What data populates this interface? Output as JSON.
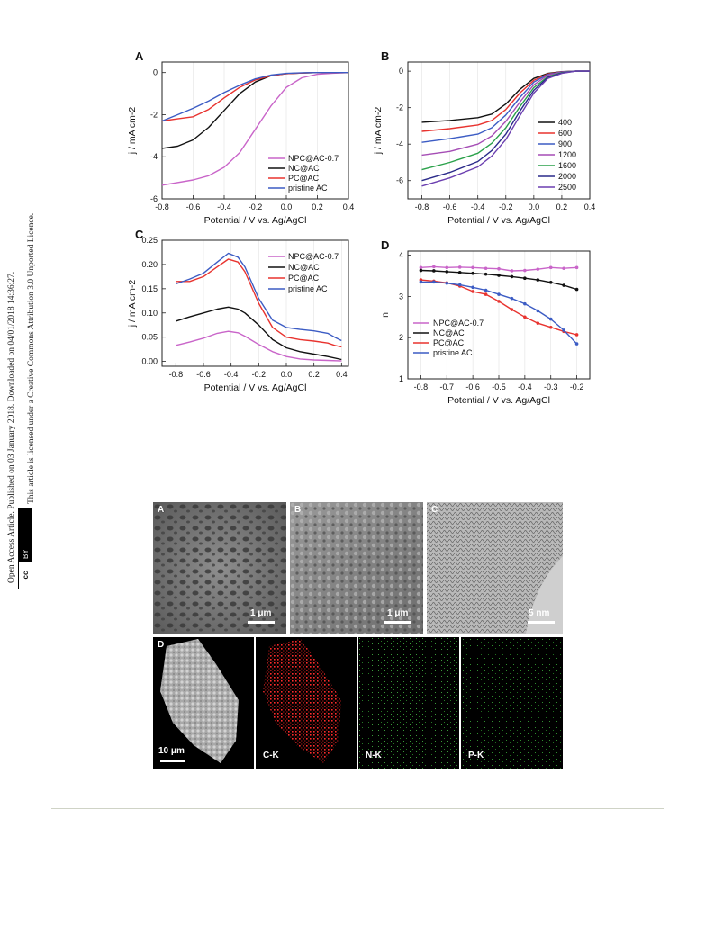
{
  "sidebar": {
    "line1": "Open Access Article. Published on 03 January 2018. Downloaded on 04/01/2018 14:36:27.",
    "line2": "This article is licensed under a Creative Commons Attribution 3.0 Unported Licence.",
    "cc_left": "cc",
    "cc_right": "BY"
  },
  "colors": {
    "purple_light": "#c965c9",
    "black": "#111111",
    "red": "#e8332f",
    "blue": "#3c5cc4",
    "green": "#2aa14a",
    "navy": "#2a2a8a",
    "violet": "#6b3fb0",
    "purple_mid": "#a54db5"
  },
  "chart_data": [
    {
      "panel": "A",
      "type": "line",
      "xlabel": "Potential / V vs. Ag/AgCl",
      "ylabel": "j / mA cm-2",
      "xlim": [
        -0.8,
        0.4
      ],
      "ylim": [
        -6,
        0.5
      ],
      "xticks": [
        "-0.8",
        "-0.6",
        "-0.4",
        "-0.2",
        "0.0",
        "0.2",
        "0.4"
      ],
      "yticks": [
        "0",
        "-2",
        "-4",
        "-6"
      ],
      "legend_position": "bottom-right",
      "series": [
        {
          "name": "NPC@AC-0.7",
          "color": "#c965c9",
          "x": [
            -0.8,
            -0.6,
            -0.5,
            -0.4,
            -0.3,
            -0.2,
            -0.1,
            0.0,
            0.1,
            0.2,
            0.3,
            0.4
          ],
          "y": [
            -5.35,
            -5.1,
            -4.9,
            -4.5,
            -3.8,
            -2.7,
            -1.6,
            -0.7,
            -0.25,
            -0.08,
            -0.03,
            0.0
          ]
        },
        {
          "name": "NC@AC",
          "color": "#111111",
          "x": [
            -0.8,
            -0.7,
            -0.6,
            -0.5,
            -0.4,
            -0.3,
            -0.2,
            -0.1,
            0.0,
            0.1,
            0.2,
            0.4
          ],
          "y": [
            -3.6,
            -3.5,
            -3.2,
            -2.6,
            -1.8,
            -1.0,
            -0.45,
            -0.15,
            -0.05,
            -0.02,
            0.0,
            0.0
          ]
        },
        {
          "name": "PC@AC",
          "color": "#e8332f",
          "x": [
            -0.8,
            -0.7,
            -0.6,
            -0.5,
            -0.4,
            -0.3,
            -0.2,
            -0.1,
            0.0,
            0.1,
            0.2,
            0.4
          ],
          "y": [
            -2.3,
            -2.2,
            -2.1,
            -1.75,
            -1.2,
            -0.7,
            -0.35,
            -0.15,
            -0.05,
            -0.02,
            0.0,
            0.0
          ]
        },
        {
          "name": "pristine AC",
          "color": "#3c5cc4",
          "x": [
            -0.8,
            -0.7,
            -0.6,
            -0.5,
            -0.4,
            -0.3,
            -0.2,
            -0.1,
            0.0,
            0.1,
            0.2,
            0.4
          ],
          "y": [
            -2.3,
            -2.0,
            -1.7,
            -1.35,
            -0.95,
            -0.6,
            -0.3,
            -0.12,
            -0.04,
            -0.01,
            0.0,
            0.0
          ]
        }
      ]
    },
    {
      "panel": "B",
      "type": "line",
      "xlabel": "Potential / V vs. Ag/AgCl",
      "ylabel": "j / mA cm-2",
      "xlim": [
        -0.9,
        0.4
      ],
      "ylim": [
        -7,
        0.5
      ],
      "xticks": [
        "-0.8",
        "-0.6",
        "-0.4",
        "-0.2",
        "0.0",
        "0.2",
        "0.4"
      ],
      "yticks": [
        "0",
        "-2",
        "-4",
        "-6"
      ],
      "legend_position": "right",
      "series": [
        {
          "name": "400",
          "color": "#111111",
          "x": [
            -0.8,
            -0.6,
            -0.4,
            -0.3,
            -0.2,
            -0.1,
            0.0,
            0.1,
            0.2,
            0.3,
            0.4
          ],
          "y": [
            -2.8,
            -2.7,
            -2.55,
            -2.35,
            -1.8,
            -1.0,
            -0.4,
            -0.12,
            -0.03,
            0.0,
            0.0
          ]
        },
        {
          "name": "600",
          "color": "#e8332f",
          "x": [
            -0.8,
            -0.6,
            -0.4,
            -0.3,
            -0.2,
            -0.1,
            0.0,
            0.1,
            0.2,
            0.3,
            0.4
          ],
          "y": [
            -3.3,
            -3.15,
            -2.95,
            -2.7,
            -2.1,
            -1.2,
            -0.5,
            -0.15,
            -0.04,
            0.0,
            0.0
          ]
        },
        {
          "name": "900",
          "color": "#3c5cc4",
          "x": [
            -0.8,
            -0.6,
            -0.4,
            -0.3,
            -0.2,
            -0.1,
            0.0,
            0.1,
            0.2,
            0.3,
            0.4
          ],
          "y": [
            -3.9,
            -3.7,
            -3.45,
            -3.1,
            -2.4,
            -1.45,
            -0.6,
            -0.18,
            -0.05,
            0.0,
            0.0
          ]
        },
        {
          "name": "1200",
          "color": "#a54db5",
          "x": [
            -0.8,
            -0.6,
            -0.4,
            -0.3,
            -0.2,
            -0.1,
            0.0,
            0.1,
            0.2,
            0.3,
            0.4
          ],
          "y": [
            -4.6,
            -4.4,
            -4.0,
            -3.55,
            -2.75,
            -1.7,
            -0.75,
            -0.22,
            -0.06,
            0.0,
            0.0
          ]
        },
        {
          "name": "1600",
          "color": "#2aa14a",
          "x": [
            -0.8,
            -0.6,
            -0.4,
            -0.3,
            -0.2,
            -0.1,
            0.0,
            0.1,
            0.2,
            0.3,
            0.4
          ],
          "y": [
            -5.4,
            -5.0,
            -4.5,
            -3.95,
            -3.1,
            -1.95,
            -0.9,
            -0.3,
            -0.08,
            0.0,
            0.0
          ]
        },
        {
          "name": "2000",
          "color": "#2a2a8a",
          "x": [
            -0.8,
            -0.6,
            -0.4,
            -0.3,
            -0.2,
            -0.1,
            0.0,
            0.1,
            0.2,
            0.3,
            0.4
          ],
          "y": [
            -6.0,
            -5.55,
            -4.95,
            -4.35,
            -3.45,
            -2.2,
            -1.05,
            -0.35,
            -0.1,
            0.0,
            0.0
          ]
        },
        {
          "name": "2500",
          "color": "#6b3fb0",
          "x": [
            -0.8,
            -0.6,
            -0.4,
            -0.3,
            -0.2,
            -0.1,
            0.0,
            0.1,
            0.2,
            0.3,
            0.4
          ],
          "y": [
            -6.3,
            -5.85,
            -5.25,
            -4.65,
            -3.75,
            -2.45,
            -1.2,
            -0.4,
            -0.12,
            0.0,
            0.0
          ]
        }
      ]
    },
    {
      "panel": "C",
      "type": "line",
      "xlabel": "Potential / V vs. Ag/AgCl",
      "ylabel": "j / mA cm-2",
      "xlim": [
        -0.9,
        0.45
      ],
      "ylim": [
        -0.01,
        0.25
      ],
      "xticks": [
        "-0.8",
        "-0.6",
        "-0.4",
        "-0.2",
        "0.0",
        "0.2",
        "0.4"
      ],
      "yticks": [
        "0.00",
        "0.05",
        "0.10",
        "0.15",
        "0.20",
        "0.25"
      ],
      "legend_position": "right",
      "series": [
        {
          "name": "NPC@AC-0.7",
          "color": "#c965c9",
          "x": [
            -0.8,
            -0.7,
            -0.6,
            -0.5,
            -0.42,
            -0.35,
            -0.3,
            -0.2,
            -0.1,
            0.0,
            0.1,
            0.2,
            0.3,
            0.4
          ],
          "y": [
            0.033,
            0.04,
            0.048,
            0.058,
            0.062,
            0.059,
            0.052,
            0.035,
            0.02,
            0.01,
            0.005,
            0.003,
            0.002,
            0.001
          ]
        },
        {
          "name": "NC@AC",
          "color": "#111111",
          "x": [
            -0.8,
            -0.7,
            -0.6,
            -0.5,
            -0.42,
            -0.35,
            -0.3,
            -0.2,
            -0.1,
            0.0,
            0.1,
            0.2,
            0.3,
            0.4
          ],
          "y": [
            0.083,
            0.092,
            0.1,
            0.108,
            0.112,
            0.108,
            0.1,
            0.075,
            0.045,
            0.028,
            0.02,
            0.015,
            0.01,
            0.004
          ]
        },
        {
          "name": "PC@AC",
          "color": "#e8332f",
          "x": [
            -0.8,
            -0.7,
            -0.6,
            -0.5,
            -0.42,
            -0.35,
            -0.3,
            -0.2,
            -0.1,
            0.0,
            0.1,
            0.2,
            0.3,
            0.35,
            0.4
          ],
          "y": [
            0.165,
            0.165,
            0.175,
            0.195,
            0.211,
            0.205,
            0.185,
            0.12,
            0.07,
            0.05,
            0.045,
            0.042,
            0.038,
            0.033,
            0.03
          ]
        },
        {
          "name": "pristine AC",
          "color": "#3c5cc4",
          "x": [
            -0.8,
            -0.7,
            -0.6,
            -0.5,
            -0.42,
            -0.35,
            -0.3,
            -0.2,
            -0.1,
            0.0,
            0.1,
            0.2,
            0.3,
            0.35,
            0.4
          ],
          "y": [
            0.16,
            0.17,
            0.182,
            0.205,
            0.223,
            0.215,
            0.195,
            0.13,
            0.085,
            0.07,
            0.066,
            0.063,
            0.058,
            0.05,
            0.043
          ]
        }
      ]
    },
    {
      "panel": "D",
      "type": "line",
      "xlabel": "Potential / V vs. Ag/AgCl",
      "ylabel": "n",
      "xlim": [
        -0.85,
        -0.15
      ],
      "ylim": [
        1,
        4.1
      ],
      "xticks": [
        "-0.8",
        "-0.7",
        "-0.6",
        "-0.5",
        "-0.4",
        "-0.3",
        "-0.2"
      ],
      "yticks": [
        "1",
        "2",
        "3",
        "4"
      ],
      "legend_position": "bottom-left",
      "series": [
        {
          "name": "NPC@AC-0.7",
          "color": "#c965c9",
          "x": [
            -0.8,
            -0.75,
            -0.7,
            -0.65,
            -0.6,
            -0.55,
            -0.5,
            -0.45,
            -0.4,
            -0.35,
            -0.3,
            -0.25,
            -0.2
          ],
          "y": [
            3.7,
            3.72,
            3.7,
            3.71,
            3.7,
            3.68,
            3.67,
            3.62,
            3.63,
            3.66,
            3.7,
            3.68,
            3.7
          ]
        },
        {
          "name": "NC@AC",
          "color": "#111111",
          "x": [
            -0.8,
            -0.75,
            -0.7,
            -0.65,
            -0.6,
            -0.55,
            -0.5,
            -0.45,
            -0.4,
            -0.35,
            -0.3,
            -0.25,
            -0.2
          ],
          "y": [
            3.63,
            3.62,
            3.6,
            3.58,
            3.56,
            3.54,
            3.51,
            3.48,
            3.44,
            3.4,
            3.34,
            3.27,
            3.17
          ]
        },
        {
          "name": "PC@AC",
          "color": "#e8332f",
          "x": [
            -0.8,
            -0.75,
            -0.7,
            -0.65,
            -0.6,
            -0.55,
            -0.5,
            -0.45,
            -0.4,
            -0.35,
            -0.3,
            -0.25,
            -0.2
          ],
          "y": [
            3.4,
            3.37,
            3.33,
            3.25,
            3.12,
            3.05,
            2.88,
            2.68,
            2.5,
            2.35,
            2.25,
            2.15,
            2.07
          ]
        },
        {
          "name": "pristine AC",
          "color": "#3c5cc4",
          "x": [
            -0.8,
            -0.75,
            -0.7,
            -0.65,
            -0.6,
            -0.55,
            -0.5,
            -0.45,
            -0.4,
            -0.35,
            -0.3,
            -0.25,
            -0.2
          ],
          "y": [
            3.35,
            3.35,
            3.32,
            3.28,
            3.22,
            3.15,
            3.05,
            2.95,
            2.82,
            2.65,
            2.45,
            2.18,
            1.85
          ]
        }
      ]
    }
  ],
  "micrographs": {
    "tiles": [
      {
        "letter": "A",
        "scale": "1 μm"
      },
      {
        "letter": "B",
        "scale": "1 μm"
      },
      {
        "letter": "C",
        "scale": "5 nm"
      },
      {
        "letter": "D",
        "scale": "10 μm"
      },
      {
        "letter": "",
        "scale": "C-K"
      },
      {
        "letter": "",
        "scale": "N-K"
      },
      {
        "letter": "",
        "scale": "P-K"
      }
    ]
  }
}
